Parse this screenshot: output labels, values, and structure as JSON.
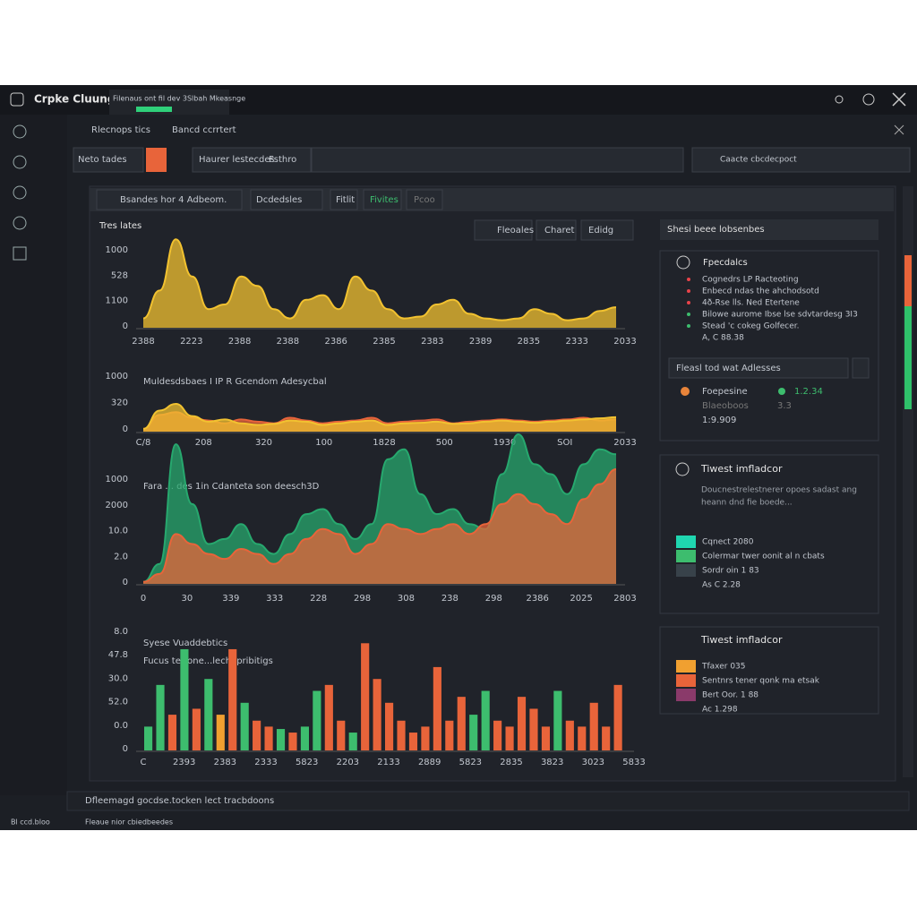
{
  "title_bar": {
    "app": "Crpke Cluung",
    "menu": "Filenaus ont fil dev 3Slbah Mkeasnge"
  },
  "tabs": [
    "Rlecnops tics",
    "Bancd ccrrtert"
  ],
  "filters": {
    "dropdown": "Neto tades",
    "field": "Haurer lestecdes",
    "field_hint": "Fsthro",
    "search": "Caacte cbcdecpoct"
  },
  "toolbar": {
    "dropdown": "Bsandes hor 4 Adbeom.",
    "buttons": [
      "Dcdedsles",
      "Fitlit",
      "Fivites",
      "Pcoo"
    ]
  },
  "chart_header": {
    "title": "Tres lates",
    "buttons": [
      "Fleoales",
      "Charet",
      "Edidg"
    ]
  },
  "charts": [
    {
      "type": "area",
      "ylim": [
        0,
        100
      ],
      "y_labels": [
        "1000",
        "528",
        "1100",
        "0"
      ],
      "x_labels": [
        "2388",
        "2223",
        "2388",
        "2388",
        "2386",
        "2385",
        "2383",
        "2389",
        "2835",
        "2333",
        "2033"
      ],
      "series": [
        {
          "color": "#f2c230",
          "values": [
            10,
            40,
            95,
            55,
            20,
            25,
            55,
            45,
            20,
            10,
            30,
            35,
            20,
            55,
            40,
            20,
            10,
            12,
            25,
            30,
            15,
            10,
            8,
            10,
            20,
            15,
            8,
            10,
            18,
            22
          ]
        }
      ]
    },
    {
      "type": "area",
      "title": "Muldesdsbaes I IP R Gcendom Adesycbal",
      "title_color": "#e8643a",
      "ylim": [
        0,
        100
      ],
      "y_labels": [
        "1000",
        "320",
        "0"
      ],
      "x_labels": [
        "C/8",
        "208",
        "320",
        "100",
        "1828",
        "500",
        "1930",
        "SOI",
        "2033"
      ],
      "series": [
        {
          "color": "#e8643a",
          "values": [
            5,
            30,
            35,
            25,
            20,
            15,
            22,
            18,
            15,
            25,
            20,
            15,
            18,
            20,
            25,
            15,
            18,
            20,
            22,
            15,
            18,
            20,
            22,
            20,
            18,
            20,
            22,
            25,
            20,
            22
          ]
        },
        {
          "color": "#f2c230",
          "values": [
            5,
            38,
            50,
            28,
            18,
            22,
            15,
            12,
            14,
            20,
            18,
            12,
            15,
            18,
            20,
            12,
            15,
            16,
            18,
            14,
            15,
            18,
            20,
            18,
            16,
            18,
            20,
            22,
            24,
            26
          ]
        }
      ]
    },
    {
      "type": "area",
      "title": "Fara ... des 1in Cdanteta son deesch3D",
      "title_color": "#2fb878",
      "ylim": [
        0,
        150
      ],
      "y_labels": [
        "1000",
        "2000",
        "10.0",
        "2.0",
        "0"
      ],
      "x_labels": [
        "0",
        "30",
        "339",
        "333",
        "228",
        "298",
        "308",
        "238",
        "298",
        "2386",
        "2025",
        "2803"
      ],
      "series": [
        {
          "color": "#27a86e",
          "values": [
            2,
            20,
            140,
            80,
            40,
            45,
            60,
            40,
            30,
            50,
            70,
            75,
            60,
            45,
            60,
            125,
            135,
            90,
            70,
            75,
            60,
            55,
            110,
            150,
            120,
            110,
            90,
            120,
            135,
            130
          ]
        },
        {
          "color": "#e8643a",
          "values": [
            2,
            10,
            50,
            40,
            30,
            25,
            35,
            30,
            20,
            30,
            45,
            55,
            50,
            30,
            40,
            60,
            55,
            50,
            55,
            60,
            50,
            60,
            80,
            90,
            80,
            70,
            60,
            85,
            100,
            115
          ]
        }
      ]
    },
    {
      "type": "bar",
      "title": "Syese Vuaddebtics",
      "title_color": "#e8643a",
      "subtitle": "Fucus ter one...lechepribitigs",
      "subtitle_color": "#2fb878",
      "ylim": [
        0,
        100
      ],
      "y_labels": [
        "8.0",
        "47.8",
        "30.0",
        "52.0",
        "0.0",
        "0"
      ],
      "x_labels": [
        "C",
        "2393",
        "2383",
        "2333",
        "5823",
        "2203",
        "2133",
        "2889",
        "5823",
        "2835",
        "3823",
        "3023",
        "5833"
      ],
      "values": [
        20,
        55,
        30,
        85,
        35,
        60,
        30,
        85,
        40,
        25,
        20,
        18,
        15,
        20,
        50,
        55,
        25,
        15,
        90,
        60,
        40,
        25,
        15,
        20,
        70,
        25,
        45,
        30,
        50,
        25,
        20,
        45,
        35,
        20,
        50,
        25,
        20,
        40,
        20,
        55
      ],
      "colors": [
        "#3dbd6e",
        "#3dbd6e",
        "#e8643a",
        "#3dbd6e",
        "#e8643a",
        "#3dbd6e",
        "#f0a030",
        "#e8643a",
        "#3dbd6e",
        "#e8643a",
        "#e8643a",
        "#3dbd6e",
        "#e8643a",
        "#3dbd6e",
        "#3dbd6e",
        "#e8643a",
        "#e8643a",
        "#3dbd6e",
        "#e8643a",
        "#e8643a",
        "#e8643a",
        "#e8643a",
        "#e8643a",
        "#e8643a",
        "#e8643a",
        "#e8643a",
        "#e8643a",
        "#3dbd6e",
        "#3dbd6e",
        "#e8643a",
        "#e8643a",
        "#e8643a",
        "#e8643a",
        "#e8643a",
        "#3dbd6e",
        "#e8643a",
        "#e8643a",
        "#e8643a",
        "#e8643a",
        "#e8643a"
      ]
    }
  ],
  "right_header": "Shesi beee lobsenbes",
  "panel_a": {
    "title": "Fpecdalcs",
    "items": [
      {
        "text": "Cognedrs LP Racteoting",
        "color": "#e8434a"
      },
      {
        "text": "Enbecd ndas the ahchodsotd",
        "color": "#e8434a"
      },
      {
        "text": "4ð-Rse lls. Ned Etertene",
        "color": "#e8434a"
      },
      {
        "text": "Bilowe aurome Ibse lse sdvtardesg 3I3",
        "color": "#3dbd6e"
      },
      {
        "text": "Stead 'c cokeg Golfecer.",
        "color": "#3dbd6e"
      }
    ],
    "note": "A, C 88.38",
    "dropdown": "Fleasl tod wat Adlesses",
    "stat_a": "Foepesine",
    "stat_b": "1.2.34",
    "stat_c": "Blaeoboos",
    "stat_d": "3.3",
    "stat_e": "1:9.909"
  },
  "panel_b": {
    "title": "Tiwest imfladcor",
    "desc": [
      "Doucnestrelestnerer opoes sadast ang",
      "heann dnd fie boede..."
    ],
    "legend": [
      {
        "text": "Cqnect 2080",
        "color": "#1fd6b0"
      },
      {
        "text": "Colermar twer oonit al n cbats",
        "color": "#3dbd6e"
      },
      {
        "text": "Sordr oin 1 83",
        "color": "#38424a"
      }
    ],
    "note": "As C 2.28"
  },
  "panel_c": {
    "title": "Tiwest imfladcor",
    "legend": [
      {
        "text": "Tfaxer 035",
        "color": "#f0a030"
      },
      {
        "text": "Sentnrs tener qonk ma etsak",
        "color": "#e8643a"
      },
      {
        "text": "Bert Oor. 1 88",
        "color": "#8a3a6a"
      }
    ],
    "note": "Ac 1.298"
  },
  "status": {
    "bar": "Dfleemagd gocdse.tocken lect tracbdoons",
    "left": "Bl ccd.bloo",
    "right": "Fleaue nior cbiedbeedes"
  }
}
